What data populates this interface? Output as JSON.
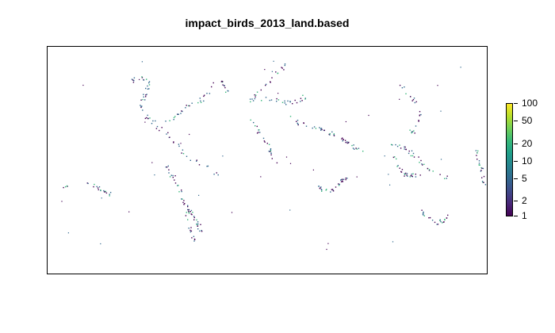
{
  "title": "impact_birds_2013_land.based",
  "legend": {
    "scale": "log",
    "ticks": [
      "100",
      "50",
      "20",
      "10",
      "5",
      "2",
      "1"
    ],
    "tick_values": [
      100,
      50,
      20,
      10,
      5,
      2,
      1
    ],
    "palette": [
      "#440154",
      "#482878",
      "#3e4a89",
      "#31688e",
      "#26828e",
      "#1f9e89",
      "#35b779",
      "#6ece58",
      "#b5de2b",
      "#fde725"
    ]
  },
  "colors": {
    "low": "#440154",
    "mid": "#31688e",
    "high": "#35b779"
  }
}
